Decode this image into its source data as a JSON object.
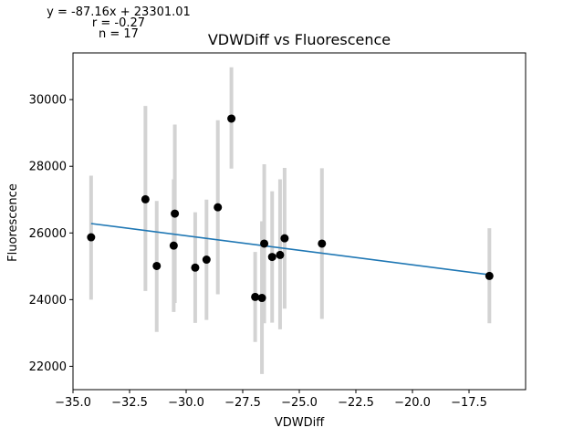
{
  "chart_data": {
    "type": "scatter",
    "title": "VDWDiff vs Fluorescence",
    "xlabel": "VDWDiff",
    "ylabel": "Fluorescence",
    "stats": {
      "equation": "y = -87.16x + 23301.01",
      "r": "r = -0.27",
      "n": "n = 17"
    },
    "xlim": [
      -35.0,
      -15.0
    ],
    "ylim": [
      21300,
      31400
    ],
    "x_ticks": [
      -35.0,
      -32.5,
      -30.0,
      -27.5,
      -25.0,
      -22.5,
      -20.0,
      -17.5
    ],
    "x_tick_labels": [
      "−35.0",
      "−32.5",
      "−30.0",
      "−27.5",
      "−25.0",
      "−22.5",
      "−20.0",
      "−17.5"
    ],
    "y_ticks": [
      22000,
      24000,
      26000,
      28000,
      30000
    ],
    "y_tick_labels": [
      "22000",
      "24000",
      "26000",
      "28000",
      "30000"
    ],
    "grid": false,
    "regression": {
      "slope": -87.16,
      "intercept": 23301.01,
      "x_range": [
        -34.2,
        -16.6
      ]
    },
    "points": [
      {
        "x": -34.2,
        "y": 25870,
        "err_low": 24000,
        "err_high": 27720
      },
      {
        "x": -31.8,
        "y": 27010,
        "err_low": 24260,
        "err_high": 29810
      },
      {
        "x": -31.3,
        "y": 25010,
        "err_low": 23030,
        "err_high": 26960
      },
      {
        "x": -30.5,
        "y": 26580,
        "err_low": 23900,
        "err_high": 29250
      },
      {
        "x": -30.55,
        "y": 25620,
        "err_low": 23630,
        "err_high": 27610
      },
      {
        "x": -29.6,
        "y": 24960,
        "err_low": 23300,
        "err_high": 26620
      },
      {
        "x": -29.1,
        "y": 25200,
        "err_low": 23390,
        "err_high": 27000
      },
      {
        "x": -28.6,
        "y": 26770,
        "err_low": 24160,
        "err_high": 29380
      },
      {
        "x": -28.0,
        "y": 29430,
        "err_low": 27930,
        "err_high": 30970
      },
      {
        "x": -26.95,
        "y": 24080,
        "err_low": 22730,
        "err_high": 25430
      },
      {
        "x": -26.65,
        "y": 24050,
        "err_low": 21770,
        "err_high": 26350
      },
      {
        "x": -26.55,
        "y": 25680,
        "err_low": 23290,
        "err_high": 28060
      },
      {
        "x": -26.2,
        "y": 25280,
        "err_low": 23310,
        "err_high": 27250
      },
      {
        "x": -25.85,
        "y": 25340,
        "err_low": 23110,
        "err_high": 27610
      },
      {
        "x": -25.65,
        "y": 25840,
        "err_low": 23730,
        "err_high": 27950
      },
      {
        "x": -24.0,
        "y": 25680,
        "err_low": 23420,
        "err_high": 27940
      },
      {
        "x": -16.6,
        "y": 24710,
        "err_low": 23290,
        "err_high": 26140
      }
    ],
    "colors": {
      "points": "#000000",
      "error_bars": "#d3d3d3",
      "regression_line": "#1f77b4",
      "axes": "#000000"
    }
  }
}
